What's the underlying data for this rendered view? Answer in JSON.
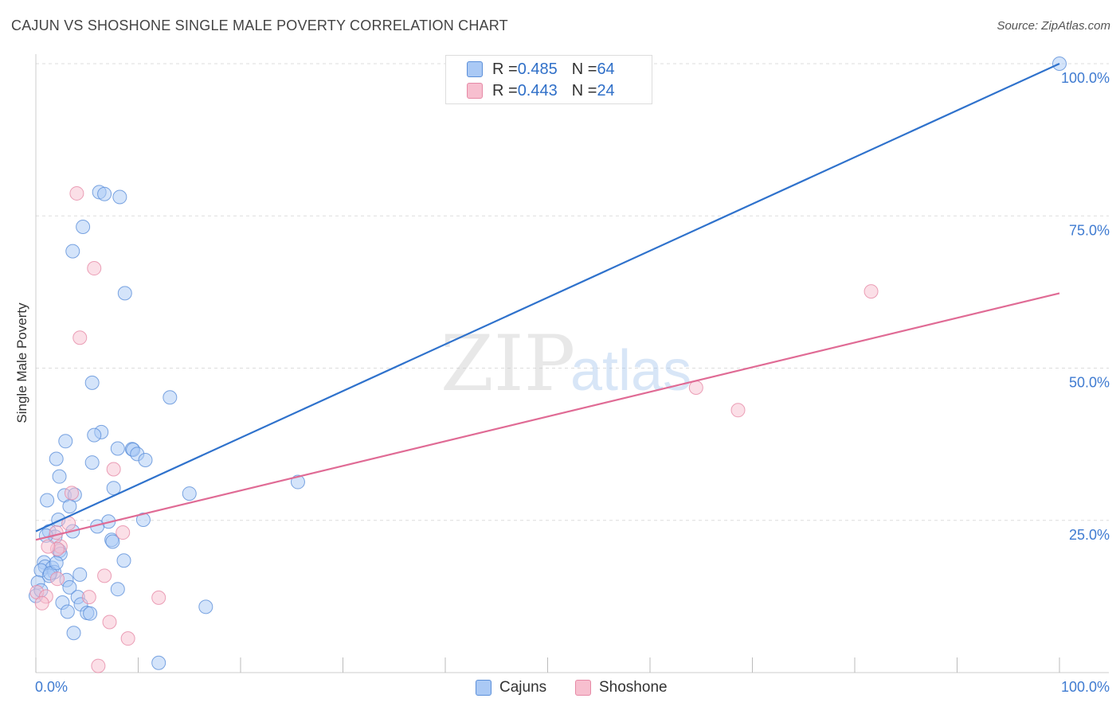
{
  "header": {
    "title": "CAJUN VS SHOSHONE SINGLE MALE POVERTY CORRELATION CHART",
    "source": "Source: ZipAtlas.com"
  },
  "legend": {
    "cajuns": {
      "r_label": "R = ",
      "r_value": "0.485",
      "n_label": "N = ",
      "n_value": "64"
    },
    "shoshone": {
      "r_label": "R = ",
      "r_value": "0.443",
      "n_label": "N = ",
      "n_value": "24"
    }
  },
  "bottom_legend": {
    "cajuns": "Cajuns",
    "shoshone": "Shoshone"
  },
  "watermark": {
    "zip": "ZIP",
    "atlas": "atlas"
  },
  "colors": {
    "cajuns_fill": "#aac9f5",
    "cajuns_stroke": "#5b8fd9",
    "cajuns_line": "#2f72cc",
    "shoshone_fill": "#f7bfcf",
    "shoshone_stroke": "#e68aa6",
    "shoshone_line": "#e06b95",
    "tick_label": "#3f7bd1",
    "grid": "#dddddd"
  },
  "chart_data": {
    "type": "scatter",
    "title": "CAJUN VS SHOSHONE SINGLE MALE POVERTY CORRELATION CHART",
    "xlabel": "",
    "ylabel": "Single Male Poverty",
    "xlim": [
      0,
      100
    ],
    "ylim": [
      0,
      100
    ],
    "x_tick_labels": [
      "0.0%",
      "100.0%"
    ],
    "y_ticks": [
      25,
      50,
      75,
      100
    ],
    "y_tick_labels": [
      "25.0%",
      "50.0%",
      "75.0%",
      "100.0%"
    ],
    "grid": true,
    "series": [
      {
        "name": "Cajuns",
        "r": 0.485,
        "n": 64,
        "trendline": {
          "x": [
            0,
            100
          ],
          "y": [
            23.2,
            100
          ]
        },
        "points": [
          [
            100,
            100
          ],
          [
            6.2,
            78.9
          ],
          [
            6.7,
            78.6
          ],
          [
            8.2,
            78.1
          ],
          [
            4.6,
            73.2
          ],
          [
            3.6,
            69.2
          ],
          [
            8.7,
            62.3
          ],
          [
            5.5,
            47.6
          ],
          [
            13.1,
            45.2
          ],
          [
            6.4,
            39.5
          ],
          [
            5.7,
            39.0
          ],
          [
            2.9,
            38.0
          ],
          [
            8.0,
            36.8
          ],
          [
            9.4,
            36.7
          ],
          [
            9.5,
            36.6
          ],
          [
            9.9,
            35.9
          ],
          [
            2.0,
            35.1
          ],
          [
            10.7,
            34.9
          ],
          [
            5.5,
            34.5
          ],
          [
            2.3,
            32.2
          ],
          [
            25.6,
            31.3
          ],
          [
            7.6,
            30.3
          ],
          [
            15.0,
            29.4
          ],
          [
            2.8,
            29.1
          ],
          [
            3.8,
            29.2
          ],
          [
            1.1,
            28.3
          ],
          [
            3.3,
            27.3
          ],
          [
            10.5,
            25.1
          ],
          [
            2.2,
            25.1
          ],
          [
            7.1,
            24.8
          ],
          [
            6.0,
            24.0
          ],
          [
            1.3,
            23.2
          ],
          [
            3.6,
            23.2
          ],
          [
            1.9,
            22.3
          ],
          [
            7.4,
            21.8
          ],
          [
            7.5,
            21.5
          ],
          [
            2.3,
            20.0
          ],
          [
            2.4,
            19.5
          ],
          [
            8.6,
            18.4
          ],
          [
            0.8,
            18.1
          ],
          [
            0.9,
            17.4
          ],
          [
            1.6,
            17.2
          ],
          [
            1.8,
            16.5
          ],
          [
            0.5,
            16.8
          ],
          [
            4.3,
            16.1
          ],
          [
            1.3,
            15.9
          ],
          [
            1.4,
            16.3
          ],
          [
            3.0,
            15.2
          ],
          [
            0.2,
            14.8
          ],
          [
            3.3,
            14.0
          ],
          [
            8.0,
            13.7
          ],
          [
            0.0,
            12.6
          ],
          [
            4.1,
            12.4
          ],
          [
            4.4,
            11.2
          ],
          [
            2.6,
            11.5
          ],
          [
            16.6,
            10.8
          ],
          [
            3.1,
            10.0
          ],
          [
            5.0,
            9.8
          ],
          [
            5.3,
            9.7
          ],
          [
            3.7,
            6.5
          ],
          [
            12.0,
            1.6
          ],
          [
            0.5,
            13.5
          ],
          [
            2.0,
            18.0
          ],
          [
            1.0,
            22.5
          ]
        ]
      },
      {
        "name": "Shoshone",
        "r": 0.443,
        "n": 24,
        "trendline": {
          "x": [
            0,
            100
          ],
          "y": [
            21.8,
            62.3
          ]
        },
        "points": [
          [
            4.0,
            78.7
          ],
          [
            5.7,
            66.4
          ],
          [
            4.3,
            55.0
          ],
          [
            81.6,
            62.6
          ],
          [
            64.5,
            46.8
          ],
          [
            68.6,
            43.1
          ],
          [
            7.6,
            33.4
          ],
          [
            3.5,
            29.5
          ],
          [
            8.5,
            23.0
          ],
          [
            3.2,
            24.5
          ],
          [
            2.0,
            23.0
          ],
          [
            2.4,
            20.7
          ],
          [
            2.1,
            20.3
          ],
          [
            1.2,
            20.7
          ],
          [
            6.7,
            15.9
          ],
          [
            2.1,
            15.4
          ],
          [
            0.1,
            13.2
          ],
          [
            1.0,
            12.5
          ],
          [
            5.2,
            12.4
          ],
          [
            12.0,
            12.3
          ],
          [
            0.6,
            11.4
          ],
          [
            7.2,
            8.3
          ],
          [
            9.0,
            5.6
          ],
          [
            6.1,
            1.1
          ]
        ]
      }
    ]
  }
}
